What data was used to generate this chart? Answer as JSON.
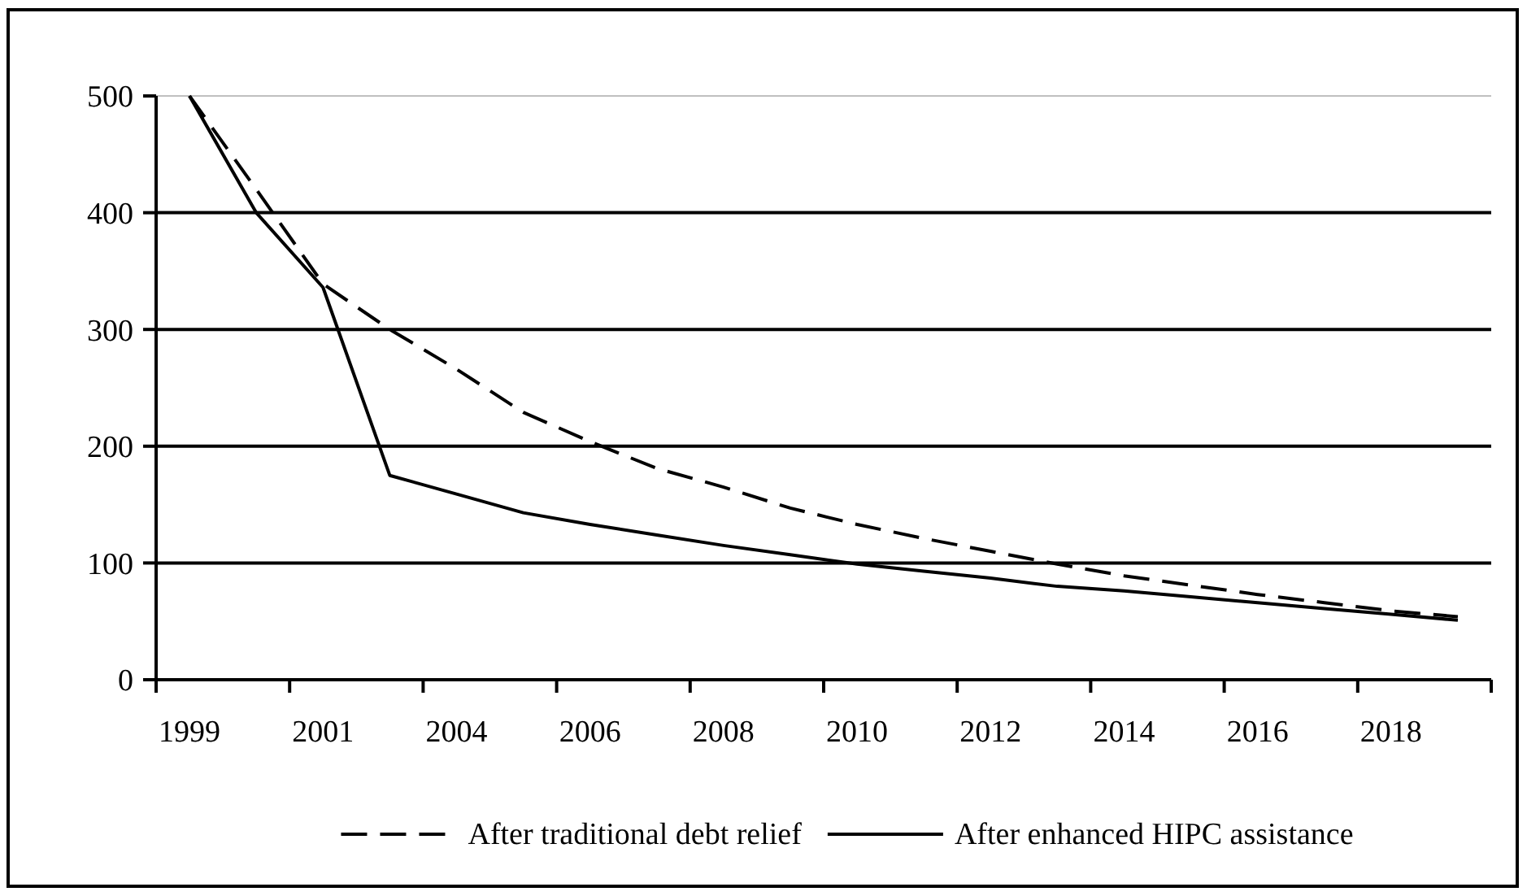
{
  "chart_data": {
    "type": "line",
    "categories": [
      "1999",
      null,
      "2001",
      null,
      "2004",
      null,
      "2006",
      null,
      "2008",
      null,
      "2010",
      null,
      "2012",
      null,
      "2014",
      null,
      "2016",
      null,
      "2018",
      null
    ],
    "series": [
      {
        "name": "After traditional debt relief",
        "color": "#000000",
        "line_style": "dashed",
        "values": [
          500,
          420,
          339,
          300,
          266,
          229,
          204,
          181,
          165,
          147,
          133,
          121,
          110,
          99,
          89,
          81,
          73,
          66,
          59,
          54
        ]
      },
      {
        "name": "After enhanced HIPC assistance",
        "color": "#000000",
        "line_style": "solid",
        "values": [
          500,
          400,
          336,
          175,
          159,
          143,
          133,
          124,
          115,
          107,
          99,
          93,
          87,
          80,
          76,
          71,
          66,
          61,
          56,
          51
        ]
      }
    ],
    "ylim": [
      0,
      500
    ],
    "yticks": [
      0,
      100,
      200,
      300,
      400,
      500
    ],
    "grid": "y",
    "legend": "bottom",
    "marker": "none"
  }
}
